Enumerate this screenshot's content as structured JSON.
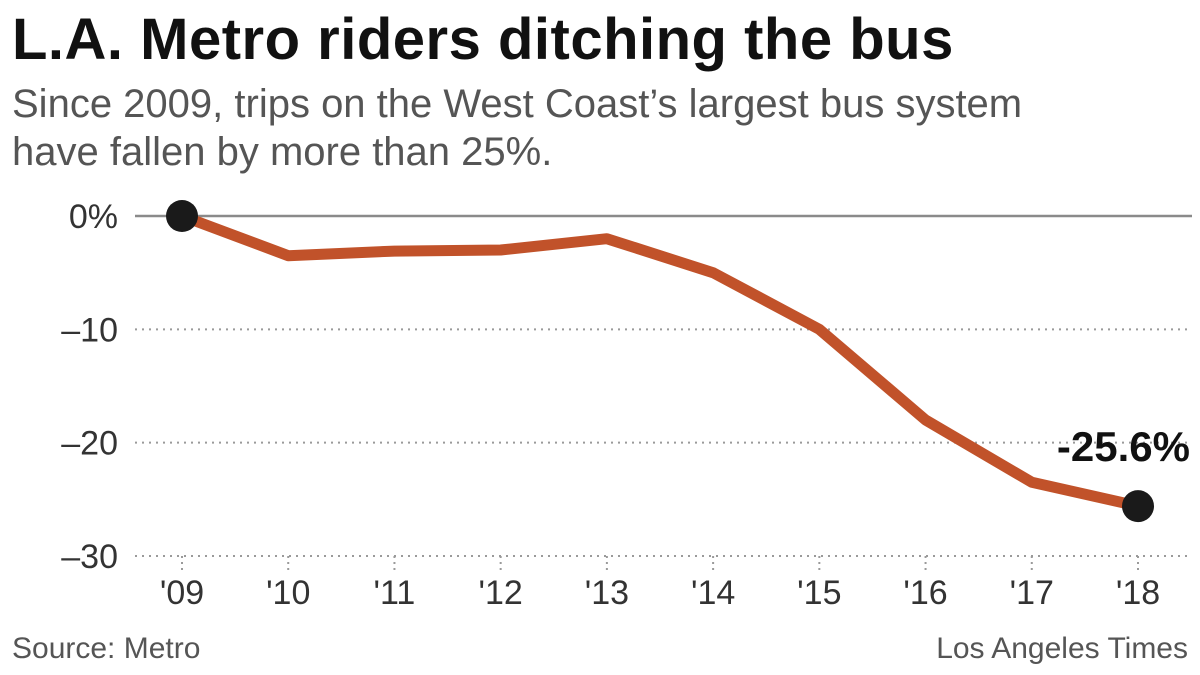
{
  "title": "L.A. Metro riders ditching the bus",
  "subtitle": "Since 2009, trips on the West Coast’s largest bus system have fallen by more than 25%.",
  "source": "Source: Metro",
  "credit": "Los Angeles Times",
  "colors": {
    "line": "#c1522a",
    "marker": "#1a1a1a",
    "zero_line": "#8a8a8a",
    "grid": "#9a9a9a",
    "tick_text": "#333333",
    "annotation": "#111111"
  },
  "chart_data": {
    "type": "line",
    "title": "L.A. Metro riders ditching the bus",
    "subtitle": "Since 2009, trips on the West Coast’s largest bus system have fallen by more than 25%.",
    "xlabel": "",
    "ylabel": "",
    "x": [
      "'09",
      "'10",
      "'11",
      "'12",
      "'13",
      "'14",
      "'15",
      "'16",
      "'17",
      "'18"
    ],
    "series": [
      {
        "values": [
          0,
          -3.5,
          -3.1,
          -3.0,
          -2.0,
          -5.0,
          -10.0,
          -18.0,
          -23.5,
          -25.6
        ]
      }
    ],
    "ylim": [
      -30,
      0
    ],
    "yticks": [
      0,
      -10,
      -20,
      -30
    ],
    "ytick_labels": [
      "0%",
      "–10",
      "–20",
      "–30"
    ],
    "grid": "dotted horizontal",
    "highlighted_points": [
      0,
      9
    ],
    "annotation": {
      "text": "-25.6%",
      "point_index": 9
    }
  }
}
